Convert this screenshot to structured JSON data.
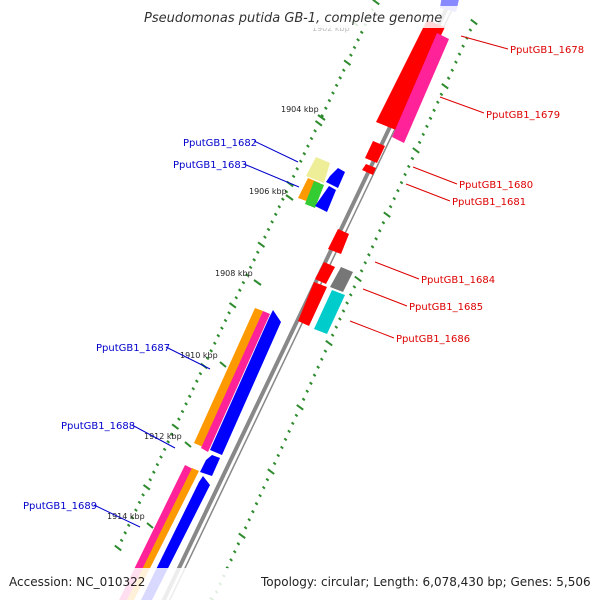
{
  "title": "Pseudomonas putida GB-1, complete genome",
  "footer": {
    "accession": "Accession: NC_010322",
    "topology": "Topology: circular; Length: 6,078,430 bp; Genes: 5,506"
  },
  "colors": {
    "background": "#ffffff",
    "backbone": "#888888",
    "tick_dots": "#2e8b2e",
    "forward_label": "#dd0000",
    "reverse_label": "#0000cc",
    "gene_red": "#ff0000",
    "gene_magenta": "#ff2299",
    "gene_blue": "#0000ff",
    "gene_orange": "#ff9900",
    "gene_green": "#33cc33",
    "gene_yellow": "#eeee99",
    "gene_cyan": "#00cccc",
    "gene_gray": "#777777",
    "gene_lavender": "#8888ff"
  },
  "kbp_marks": [
    {
      "text": "1902 kbp",
      "faint": true
    },
    {
      "text": "1904 kbp"
    },
    {
      "text": "1906 kbp"
    },
    {
      "text": "1908 kbp"
    },
    {
      "text": "1910 kbp"
    },
    {
      "text": "1912 kbp"
    },
    {
      "text": "1914 kbp"
    }
  ],
  "gene_labels": {
    "forward": [
      "PputGB1_1678",
      "PputGB1_1679",
      "PputGB1_1680",
      "PputGB1_1681",
      "PputGB1_1684",
      "PputGB1_1685",
      "PputGB1_1686"
    ],
    "reverse": [
      "PputGB1_1682",
      "PputGB1_1683",
      "PputGB1_1687",
      "PputGB1_1688",
      "PputGB1_1689"
    ]
  }
}
